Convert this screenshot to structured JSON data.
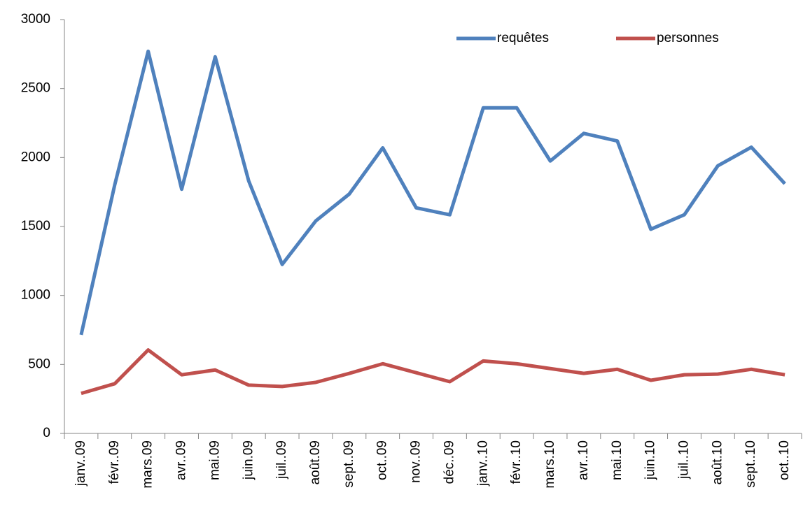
{
  "chart_data": {
    "type": "line",
    "categories": [
      "janv..09",
      "févr..09",
      "mars.09",
      "avr..09",
      "mai.09",
      "juin.09",
      "juil..09",
      "août.09",
      "sept..09",
      "oct..09",
      "nov..09",
      "déc..09",
      "janv..10",
      "févr..10",
      "mars.10",
      "avr..10",
      "mai.10",
      "juin.10",
      "juil..10",
      "août.10",
      "sept..10",
      "oct..10"
    ],
    "series": [
      {
        "name": "requêtes",
        "color": "#4f81bd",
        "values": [
          715,
          1800,
          2770,
          1770,
          2730,
          1830,
          1225,
          1540,
          1735,
          2070,
          1635,
          1585,
          2360,
          2360,
          1975,
          2175,
          2120,
          1480,
          1585,
          1940,
          2075,
          1810
        ]
      },
      {
        "name": "personnes",
        "color": "#c0504d",
        "values": [
          290,
          360,
          605,
          425,
          460,
          350,
          340,
          370,
          435,
          505,
          440,
          375,
          525,
          505,
          470,
          435,
          465,
          385,
          425,
          430,
          465,
          425
        ]
      }
    ],
    "ylim": [
      0,
      3000
    ],
    "yticks": [
      0,
      500,
      1000,
      1500,
      2000,
      2500,
      3000
    ],
    "grid": false,
    "legend": "top-right"
  }
}
